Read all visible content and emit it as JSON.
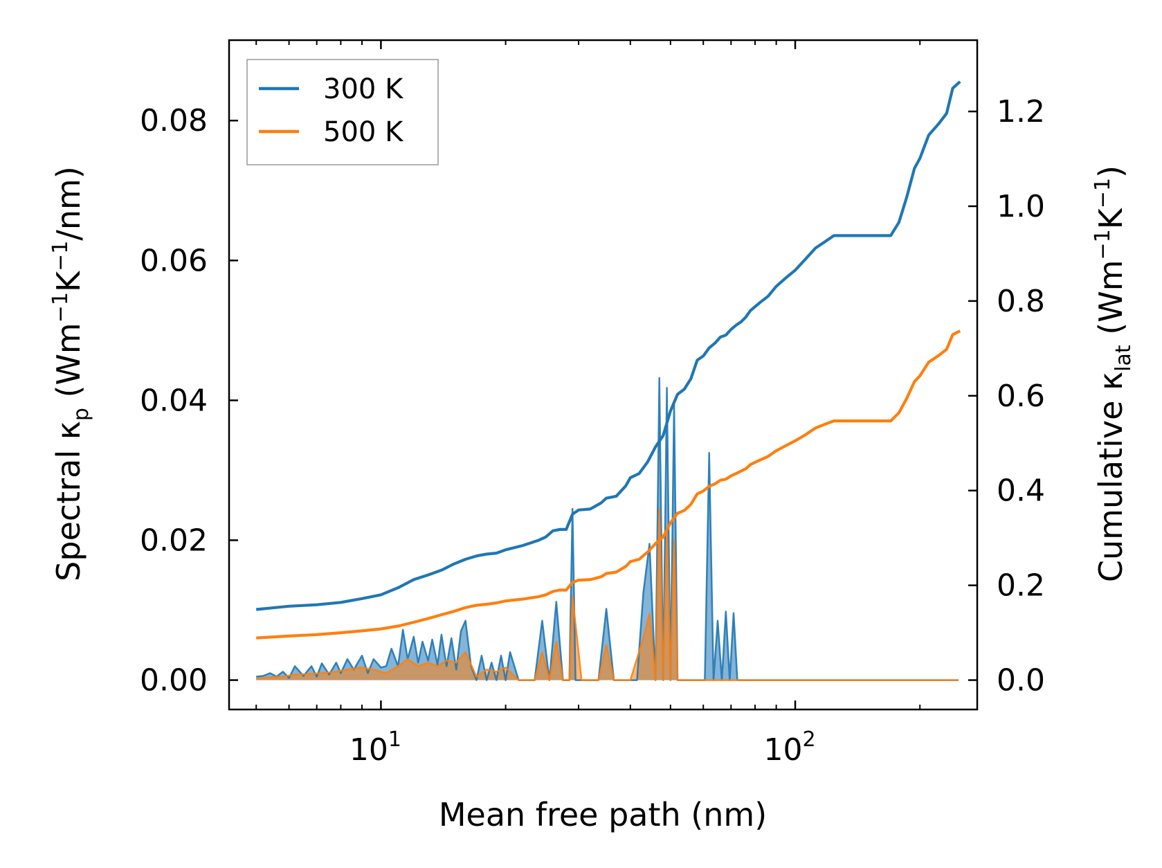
{
  "chart_data": {
    "type": "line",
    "xlabel": "Mean free path (nm)",
    "xscale": "log",
    "xlim": [
      4.3,
      275
    ],
    "xticks": [
      {
        "value": 10,
        "base": "10",
        "exp": "1"
      },
      {
        "value": 100,
        "base": "10",
        "exp": "2"
      }
    ],
    "y_left": {
      "label": "Spectral κ",
      "label_sub": "p",
      "label_units_pre": " (Wm",
      "label_sup1": "−1",
      "label_mid": "K",
      "label_sup2": "−1",
      "label_units_post": "/nm)",
      "lim": [
        -0.0042,
        0.0915
      ],
      "ticks": [
        "0.00",
        "0.02",
        "0.04",
        "0.06",
        "0.08"
      ],
      "tick_values": [
        0.0,
        0.02,
        0.04,
        0.06,
        0.08
      ]
    },
    "y_right": {
      "label": "Cumulative κ",
      "label_sub": "lat",
      "label_units_pre": " (Wm",
      "label_sup1": "−1",
      "label_mid": "K",
      "label_sup2": "−1",
      "label_units_post": ")",
      "lim": [
        -0.062,
        1.3505
      ],
      "ticks": [
        "0.0",
        "0.2",
        "0.4",
        "0.6",
        "0.8",
        "1.0",
        "1.2"
      ],
      "tick_values": [
        0.0,
        0.2,
        0.4,
        0.6,
        0.8,
        1.0,
        1.2
      ]
    },
    "legend": {
      "placement": "upper-left",
      "entries": [
        {
          "name": "300 K",
          "color": "#1f77b4"
        },
        {
          "name": "500 K",
          "color": "#ff7f0e"
        }
      ]
    },
    "series": [
      {
        "name": "300 K",
        "color": "#1f77b4",
        "cumulative": {
          "x": [
            5,
            6,
            7,
            8,
            9,
            10,
            11,
            12,
            13,
            14,
            15,
            16,
            17,
            18,
            19,
            20,
            22,
            24,
            25,
            26,
            27,
            28,
            29,
            30,
            32,
            34,
            35,
            37,
            39,
            40,
            42,
            44,
            46,
            48,
            50,
            52,
            54,
            56,
            58,
            60,
            62,
            64,
            66,
            68,
            70,
            72,
            74,
            76,
            78,
            82,
            86,
            90,
            95,
            100,
            106,
            112,
            118,
            124,
            130,
            140,
            160,
            170,
            178,
            186,
            194,
            200,
            210,
            222,
            232,
            240,
            250
          ],
          "y": [
            0.149,
            0.156,
            0.159,
            0.164,
            0.172,
            0.18,
            0.195,
            0.212,
            0.222,
            0.232,
            0.245,
            0.255,
            0.262,
            0.266,
            0.268,
            0.275,
            0.284,
            0.295,
            0.302,
            0.315,
            0.318,
            0.318,
            0.35,
            0.359,
            0.361,
            0.374,
            0.384,
            0.388,
            0.41,
            0.427,
            0.436,
            0.46,
            0.492,
            0.516,
            0.568,
            0.603,
            0.614,
            0.636,
            0.675,
            0.684,
            0.701,
            0.711,
            0.724,
            0.728,
            0.74,
            0.749,
            0.756,
            0.766,
            0.78,
            0.796,
            0.81,
            0.831,
            0.849,
            0.865,
            0.889,
            0.912,
            0.925,
            0.938,
            0.938,
            0.938,
            0.938,
            0.938,
            0.966,
            1.02,
            1.08,
            1.101,
            1.15,
            1.174,
            1.196,
            1.249,
            1.263
          ]
        },
        "spectral": {
          "x": [
            5.0,
            5.2,
            5.4,
            5.6,
            5.8,
            6.0,
            6.2,
            6.5,
            6.8,
            7.0,
            7.2,
            7.5,
            7.8,
            8.0,
            8.3,
            8.6,
            9.0,
            9.3,
            9.6,
            10.0,
            10.3,
            10.6,
            11.0,
            11.3,
            11.6,
            12.0,
            12.3,
            12.6,
            13.0,
            13.3,
            13.7,
            14.0,
            14.4,
            14.8,
            15.2,
            15.6,
            16.0,
            16.5,
            17.0,
            17.5,
            18.0,
            18.5,
            19.0,
            19.5,
            20.0,
            20.5,
            21.5,
            22.5,
            23.5,
            24.5,
            25.5,
            26.5,
            27.5,
            28.5,
            29.0,
            29.5,
            30.5,
            32.0,
            33.5,
            35.0,
            36.5,
            38.0,
            40.0,
            41.5,
            43.0,
            44.5,
            46.0,
            47.0,
            48.0,
            49.0,
            50.0,
            51.0,
            52.0,
            53.0,
            54.5,
            56.0,
            57.5,
            59.0,
            60.5,
            62.0,
            63.5,
            65.0,
            66.5,
            68.0,
            69.5,
            71.0,
            72.5,
            74.0,
            75.5,
            77.0,
            79.0,
            81.0,
            83.0,
            85.0,
            87.0,
            89.0,
            92.0,
            95.0,
            98.0,
            101,
            104,
            107,
            110,
            113,
            116,
            119,
            122,
            125,
            140,
            160,
            170,
            172,
            176,
            180,
            184,
            188,
            192,
            196,
            200,
            204,
            208,
            212,
            216,
            220,
            224,
            228,
            232,
            236,
            240,
            244,
            248
          ],
          "y": [
            0.0005,
            0.0006,
            0.001,
            0.0005,
            0.0012,
            0.0003,
            0.002,
            0.0006,
            0.002,
            0.0005,
            0.0024,
            0.0008,
            0.0025,
            0.001,
            0.003,
            0.0015,
            0.0035,
            0.001,
            0.003,
            0.0018,
            0.002,
            0.0045,
            0.002,
            0.0072,
            0.003,
            0.0062,
            0.0025,
            0.0055,
            0.0028,
            0.0058,
            0.0022,
            0.0065,
            0.002,
            0.006,
            0.0015,
            0.007,
            0.0085,
            0.002,
            0.0,
            0.0035,
            0.0,
            0.0025,
            0.0,
            0.0035,
            0.0,
            0.004,
            0.0,
            0.0,
            0.0,
            0.0085,
            0.0,
            0.0112,
            0.0,
            0.0,
            0.0245,
            0.0,
            0.0,
            0.0,
            0.0,
            0.0102,
            0.0,
            0.0,
            0.0,
            0.0,
            0.0125,
            0.0195,
            0.0,
            0.0432,
            0.0,
            0.0418,
            0.0,
            0.0395,
            0.0,
            0.0,
            0.0,
            0.0,
            0.0,
            0.0,
            0.0,
            0.0325,
            0.0,
            0.0085,
            0.0,
            0.0098,
            0.0,
            0.0096,
            0.0,
            0.0,
            0.0,
            0.0,
            0.0,
            0.0,
            0.0,
            0.0,
            0.0,
            0.0,
            0.0,
            0.0,
            0.0,
            0.0,
            0.0,
            0.0,
            0.0,
            0.0,
            0.0,
            0.0,
            0.0,
            0.0,
            0.0,
            0.0,
            0.0,
            0.0,
            0.0,
            0.0,
            0.0,
            0.0,
            0.0,
            0.0,
            0.0,
            0.0,
            0.0,
            0.0,
            0.0,
            0.0,
            0.0,
            0.0,
            0.0,
            0.0,
            0.0,
            0.0,
            0.0
          ]
        }
      },
      {
        "name": "500 K",
        "color": "#ff7f0e",
        "cumulative": {
          "x": [
            5,
            6,
            7,
            8,
            9,
            10,
            11,
            12,
            13,
            14,
            15,
            16,
            17,
            18,
            19,
            20,
            22,
            24,
            25,
            26,
            27,
            28,
            29,
            30,
            32,
            34,
            35,
            37,
            39,
            40,
            42,
            44,
            46,
            48,
            50,
            52,
            54,
            56,
            58,
            60,
            62,
            64,
            66,
            68,
            70,
            72,
            74,
            76,
            78,
            82,
            86,
            90,
            95,
            100,
            106,
            112,
            118,
            124,
            130,
            140,
            160,
            170,
            178,
            186,
            194,
            200,
            210,
            222,
            232,
            240,
            250
          ],
          "y": [
            0.089,
            0.093,
            0.096,
            0.1,
            0.104,
            0.108,
            0.114,
            0.122,
            0.13,
            0.138,
            0.145,
            0.153,
            0.158,
            0.16,
            0.163,
            0.167,
            0.171,
            0.176,
            0.18,
            0.187,
            0.19,
            0.19,
            0.206,
            0.211,
            0.212,
            0.218,
            0.225,
            0.228,
            0.24,
            0.25,
            0.255,
            0.27,
            0.288,
            0.302,
            0.332,
            0.352,
            0.358,
            0.371,
            0.393,
            0.399,
            0.409,
            0.414,
            0.422,
            0.424,
            0.431,
            0.436,
            0.441,
            0.446,
            0.455,
            0.464,
            0.472,
            0.484,
            0.495,
            0.505,
            0.518,
            0.532,
            0.54,
            0.547,
            0.547,
            0.547,
            0.547,
            0.547,
            0.564,
            0.595,
            0.63,
            0.642,
            0.671,
            0.685,
            0.698,
            0.729,
            0.737
          ]
        },
        "spectral": {
          "x": [
            5.0,
            5.4,
            5.8,
            6.2,
            6.8,
            7.2,
            7.8,
            8.3,
            9.0,
            9.6,
            10.3,
            11.0,
            11.6,
            12.3,
            13.0,
            13.7,
            14.4,
            15.2,
            16.0,
            17.0,
            18.0,
            19.0,
            20.0,
            21.5,
            23.5,
            24.5,
            25.5,
            26.5,
            27.5,
            28.5,
            29.0,
            30.5,
            33.5,
            35.0,
            36.5,
            40.0,
            43.0,
            44.5,
            46.0,
            47.0,
            48.0,
            49.0,
            50.0,
            51.0,
            52.0,
            54.5,
            57.5,
            60.5,
            62.0,
            63.5,
            65.0,
            68.0,
            69.5,
            72.5,
            75.5,
            79.0,
            83.0,
            85.0,
            87.0,
            92.0,
            95.0,
            98.0,
            101,
            104,
            107,
            110,
            113,
            116,
            119,
            122,
            125,
            140,
            160,
            170,
            172,
            176,
            180,
            184,
            188,
            192,
            196,
            200,
            204,
            208,
            212,
            216,
            220,
            224,
            228,
            232,
            236,
            240,
            244,
            248
          ],
          "y": [
            0.0002,
            0.0004,
            0.0005,
            0.0008,
            0.0009,
            0.001,
            0.0012,
            0.0015,
            0.0018,
            0.0015,
            0.001,
            0.002,
            0.003,
            0.002,
            0.0025,
            0.002,
            0.0028,
            0.0025,
            0.004,
            0.0005,
            0.0015,
            0.0012,
            0.0018,
            0.0,
            0.0,
            0.004,
            0.0,
            0.0055,
            0.0,
            0.0,
            0.012,
            0.0,
            0.0,
            0.005,
            0.0,
            0.0,
            0.006,
            0.0095,
            0.0,
            0.0245,
            0.0,
            0.0215,
            0.0,
            0.02,
            0.0,
            0.0,
            0.0,
            0.0,
            0.0,
            0.0,
            0.0,
            0.0,
            0.0,
            0.0,
            0.0,
            0.0,
            0.0,
            0.0,
            0.0,
            0.0,
            0.0,
            0.0,
            0.0,
            0.0,
            0.0,
            0.0,
            0.0,
            0.0,
            0.0,
            0.0,
            0.0,
            0.0,
            0.0,
            0.0,
            0.0,
            0.0,
            0.0,
            0.0,
            0.0,
            0.0,
            0.0,
            0.0,
            0.0,
            0.0,
            0.0,
            0.0,
            0.0,
            0.0,
            0.0,
            0.0,
            0.0,
            0.0,
            0.0,
            0.0
          ]
        }
      }
    ]
  }
}
